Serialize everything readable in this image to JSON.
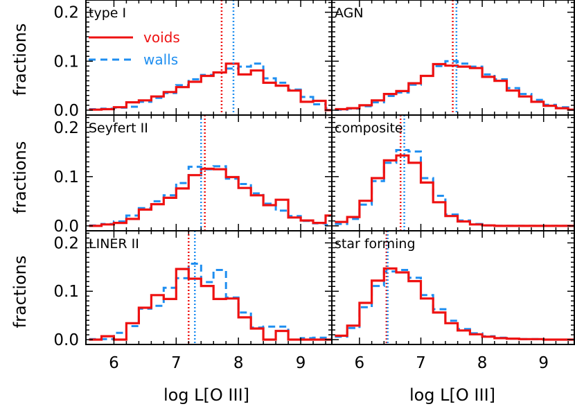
{
  "colors": {
    "voids": "#ee1111",
    "walls": "#1e8ef0"
  },
  "legend": {
    "voids": "voids",
    "walls": "walls"
  },
  "axes": {
    "xlabel": "log L[O III]",
    "ylabel": "fractions",
    "xlim": [
      5.55,
      9.5
    ],
    "ylim": [
      -0.01,
      0.225
    ],
    "xticks": [
      "6",
      "7",
      "8",
      "9"
    ],
    "yticks": [
      "0.0",
      "0.1",
      "0.2"
    ]
  },
  "chart_data": {
    "type": "line",
    "step": true,
    "bin_edges": [
      5.6,
      5.8,
      6.0,
      6.2,
      6.4,
      6.6,
      6.8,
      7.0,
      7.2,
      7.4,
      7.6,
      7.8,
      8.0,
      8.2,
      8.4,
      8.6,
      8.8,
      9.0,
      9.2,
      9.4,
      9.6
    ],
    "panels": [
      {
        "title": "type I",
        "series": [
          {
            "name": "voids",
            "values": [
              0.001,
              0.002,
              0.006,
              0.016,
              0.02,
              0.028,
              0.037,
              0.047,
              0.058,
              0.07,
              0.077,
              0.095,
              0.073,
              0.081,
              0.056,
              0.05,
              0.04,
              0.017,
              0.019,
              0.0
            ]
          },
          {
            "name": "walls",
            "values": [
              0.002,
              0.003,
              0.005,
              0.007,
              0.017,
              0.025,
              0.035,
              0.051,
              0.063,
              0.072,
              0.077,
              0.085,
              0.089,
              0.095,
              0.065,
              0.056,
              0.042,
              0.027,
              0.012,
              0.004
            ]
          }
        ],
        "markers": {
          "voids": 7.73,
          "walls": 7.92
        }
      },
      {
        "title": "AGN",
        "series": [
          {
            "name": "voids",
            "values": [
              0.002,
              0.004,
              0.01,
              0.02,
              0.033,
              0.039,
              0.055,
              0.07,
              0.094,
              0.091,
              0.089,
              0.086,
              0.068,
              0.06,
              0.04,
              0.028,
              0.017,
              0.009,
              0.004,
              0.001
            ]
          },
          {
            "name": "walls",
            "values": [
              0.001,
              0.003,
              0.008,
              0.016,
              0.029,
              0.036,
              0.052,
              0.07,
              0.09,
              0.1,
              0.095,
              0.089,
              0.073,
              0.063,
              0.045,
              0.033,
              0.021,
              0.011,
              0.006,
              0.001
            ]
          }
        ],
        "markers": {
          "voids": 7.52,
          "walls": 7.58
        }
      },
      {
        "title": "Seyfert II",
        "series": [
          {
            "name": "voids",
            "values": [
              0.0,
              0.003,
              0.006,
              0.014,
              0.033,
              0.044,
              0.057,
              0.076,
              0.103,
              0.116,
              0.115,
              0.099,
              0.077,
              0.062,
              0.042,
              0.053,
              0.017,
              0.011,
              0.006,
              0.021
            ]
          },
          {
            "name": "walls",
            "values": [
              0.001,
              0.004,
              0.009,
              0.021,
              0.036,
              0.05,
              0.062,
              0.087,
              0.12,
              0.115,
              0.121,
              0.096,
              0.085,
              0.066,
              0.045,
              0.031,
              0.02,
              0.01,
              0.005,
              0.002
            ]
          }
        ],
        "markers": {
          "voids": 7.46,
          "walls": 7.4
        }
      },
      {
        "title": "composite",
        "series": [
          {
            "name": "voids",
            "values": [
              0.008,
              0.018,
              0.051,
              0.097,
              0.133,
              0.143,
              0.128,
              0.088,
              0.048,
              0.02,
              0.009,
              0.003,
              0.001,
              0.0,
              0.0,
              0.0,
              0.0,
              0.0,
              0.0,
              0.0
            ]
          },
          {
            "name": "walls",
            "values": [
              0.004,
              0.014,
              0.043,
              0.091,
              0.128,
              0.154,
              0.151,
              0.097,
              0.061,
              0.023,
              0.011,
              0.004,
              0.001,
              0.0,
              0.0,
              0.0,
              0.0,
              0.0,
              0.0,
              0.0
            ]
          }
        ],
        "markers": {
          "voids": 6.67,
          "walls": 6.73
        }
      },
      {
        "title": "LINER II",
        "series": [
          {
            "name": "voids",
            "values": [
              0.0,
              0.007,
              0.0,
              0.034,
              0.066,
              0.092,
              0.084,
              0.146,
              0.126,
              0.111,
              0.084,
              0.085,
              0.046,
              0.023,
              0.0,
              0.018,
              0.0,
              0.0,
              0.0,
              0.0
            ]
          },
          {
            "name": "walls",
            "values": [
              0.001,
              0.001,
              0.014,
              0.028,
              0.064,
              0.07,
              0.107,
              0.127,
              0.157,
              0.119,
              0.144,
              0.087,
              0.056,
              0.025,
              0.027,
              0.027,
              0.0,
              0.003,
              0.004,
              0.004
            ]
          }
        ],
        "markers": {
          "voids": 7.2,
          "walls": 7.3
        }
      },
      {
        "title": "star forming",
        "series": [
          {
            "name": "voids",
            "values": [
              0.008,
              0.029,
              0.076,
              0.122,
              0.147,
              0.139,
              0.121,
              0.085,
              0.056,
              0.034,
              0.019,
              0.011,
              0.006,
              0.003,
              0.002,
              0.001,
              0.001,
              0.0,
              0.0,
              0.0
            ]
          },
          {
            "name": "walls",
            "values": [
              0.006,
              0.024,
              0.067,
              0.111,
              0.141,
              0.144,
              0.128,
              0.092,
              0.063,
              0.039,
              0.022,
              0.013,
              0.007,
              0.004,
              0.002,
              0.001,
              0.001,
              0.0,
              0.0,
              0.0
            ]
          }
        ],
        "markers": {
          "voids": 6.44,
          "walls": 6.46
        }
      }
    ]
  }
}
